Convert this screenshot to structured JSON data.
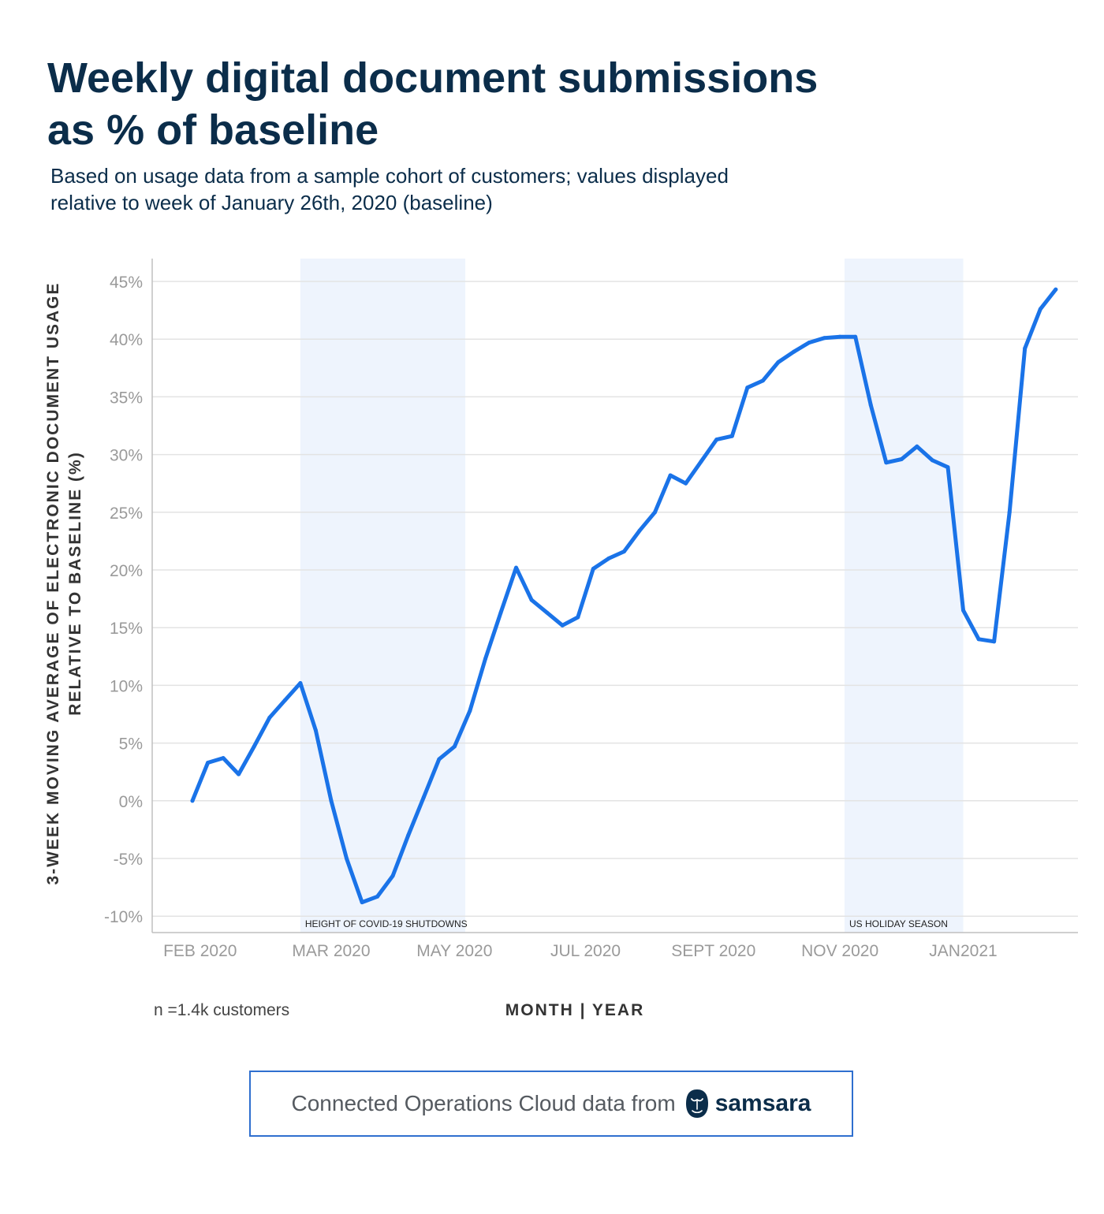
{
  "header": {
    "title_line1": "Weekly digital document submissions",
    "title_line2": "as % of baseline",
    "subtitle_line1": "Based on usage data from a sample cohort of customers; values displayed",
    "subtitle_line2": "relative to week of January 26th, 2020 (baseline)"
  },
  "chart_data": {
    "type": "line",
    "title": "Weekly digital document submissions as % of baseline",
    "xlabel": "MONTH | YEAR",
    "ylabel_line1": "3-WEEK MOVING AVERAGE OF ELECTRONIC DOCUMENT USAGE",
    "ylabel_line2": "RELATIVE TO BASELINE (%)",
    "ylim": [
      -10,
      45
    ],
    "grid": true,
    "line_color": "#1a73e8",
    "shade_color": "#eef4fd",
    "x_ticks": [
      {
        "index": 0.5,
        "label": "FEB 2020"
      },
      {
        "index": 9,
        "label": "MAR 2020"
      },
      {
        "index": 17,
        "label": "MAY 2020"
      },
      {
        "index": 25.5,
        "label": "JUL 2020"
      },
      {
        "index": 33.8,
        "label": "SEPT 2020"
      },
      {
        "index": 42,
        "label": "NOV 2020"
      },
      {
        "index": 50,
        "label": "JAN2021"
      }
    ],
    "y_ticks": [
      {
        "value": 45,
        "label": "45%"
      },
      {
        "value": 40,
        "label": "40%"
      },
      {
        "value": 35,
        "label": "35%"
      },
      {
        "value": 30,
        "label": "30%"
      },
      {
        "value": 25,
        "label": "25%"
      },
      {
        "value": 20,
        "label": "20%"
      },
      {
        "value": 15,
        "label": "15%"
      },
      {
        "value": 10,
        "label": "10%"
      },
      {
        "value": 5,
        "label": "5%"
      },
      {
        "value": 0,
        "label": "0%"
      },
      {
        "value": -5,
        "label": "-5%"
      },
      {
        "value": -10,
        "label": "-10%"
      }
    ],
    "bands": [
      {
        "start": 7,
        "end": 17.7,
        "label": "HEIGHT OF COVID-19 SHUTDOWNS"
      },
      {
        "start": 42.3,
        "end": 50,
        "label": "US HOLIDAY SEASON"
      }
    ],
    "series": [
      {
        "values": [
          0,
          3.3,
          3.7,
          2.3,
          4.7,
          7.2,
          8.7,
          10.2,
          6.1,
          0,
          -5,
          -8.8,
          -8.3,
          -6.5,
          -3,
          0.3,
          3.6,
          4.7,
          7.8,
          12.3,
          16.3,
          20.2,
          17.4,
          16.3,
          15.2,
          15.9,
          20.1,
          21,
          21.6,
          23.4,
          25,
          28.2,
          27.5,
          29.4,
          31.3,
          31.6,
          35.8,
          36.4,
          38,
          38.9,
          39.7,
          40.1,
          40.2,
          40.2,
          34.3,
          29.3,
          29.6,
          30.7,
          29.5,
          28.9,
          16.5,
          14,
          13.8,
          25,
          39.2,
          42.6,
          44.3
        ]
      }
    ]
  },
  "notes": {
    "sample_size": "n =1.4k customers"
  },
  "footer": {
    "text": "Connected Operations Cloud data from",
    "brand": "samsara"
  }
}
